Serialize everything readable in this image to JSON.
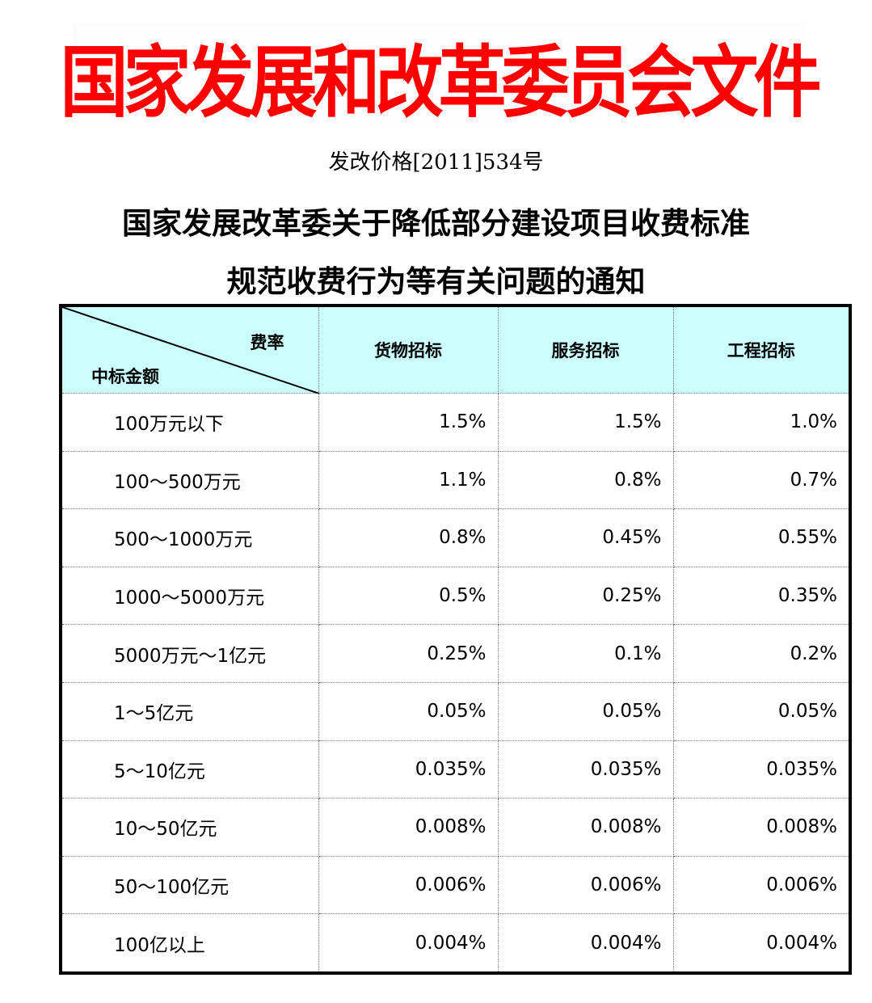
{
  "banner": "国家发展和改革委员会文件",
  "doc_number": "发改价格[2011]534号",
  "title_line1": "国家发展改革委关于降低部分建设项目收费标准",
  "title_line2": "规范收费行为等有关问题的通知",
  "table": {
    "corner_top": "费率",
    "corner_bottom": "中标金额",
    "columns": [
      "货物招标",
      "服务招标",
      "工程招标"
    ],
    "rows": [
      {
        "label": "100万元以下",
        "values": [
          "1.5%",
          "1.5%",
          "1.0%"
        ]
      },
      {
        "label": "100～500万元",
        "values": [
          "1.1%",
          "0.8%",
          "0.7%"
        ]
      },
      {
        "label": "500～1000万元",
        "values": [
          "0.8%",
          "0.45%",
          "0.55%"
        ]
      },
      {
        "label": "1000～5000万元",
        "values": [
          "0.5%",
          "0.25%",
          "0.35%"
        ]
      },
      {
        "label": "5000万元～1亿元",
        "values": [
          "0.25%",
          "0.1%",
          "0.2%"
        ]
      },
      {
        "label": "1～5亿元",
        "values": [
          "0.05%",
          "0.05%",
          "0.05%"
        ]
      },
      {
        "label": "5～10亿元",
        "values": [
          "0.035%",
          "0.035%",
          "0.035%"
        ]
      },
      {
        "label": "10～50亿元",
        "values": [
          "0.008%",
          "0.008%",
          "0.008%"
        ]
      },
      {
        "label": "50～100亿元",
        "values": [
          "0.006%",
          "0.006%",
          "0.006%"
        ]
      },
      {
        "label": "100亿以上",
        "values": [
          "0.004%",
          "0.004%",
          "0.004%"
        ]
      }
    ]
  },
  "colors": {
    "banner": "#ff0000",
    "header_bg": "#ccffff"
  }
}
